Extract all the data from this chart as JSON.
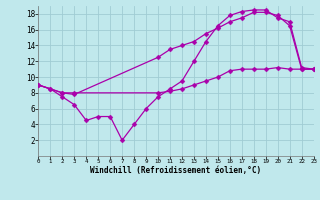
{
  "background_color": "#c0e8ec",
  "grid_color": "#a0ccd4",
  "line_color": "#aa00aa",
  "xlim": [
    0,
    23
  ],
  "ylim": [
    0,
    19
  ],
  "xtick_vals": [
    0,
    1,
    2,
    3,
    4,
    5,
    6,
    7,
    8,
    9,
    10,
    11,
    12,
    13,
    14,
    15,
    16,
    17,
    18,
    19,
    20,
    21,
    22,
    23
  ],
  "ytick_vals": [
    2,
    4,
    6,
    8,
    10,
    12,
    14,
    16,
    18
  ],
  "xlabel": "Windchill (Refroidissement éolien,°C)",
  "line1_x": [
    0,
    1,
    2,
    3,
    10,
    11,
    12,
    13,
    14,
    15,
    16,
    17,
    18,
    19,
    20,
    21,
    22,
    23
  ],
  "line1_y": [
    9.0,
    8.5,
    8.0,
    8.0,
    8.0,
    8.2,
    8.5,
    9.0,
    9.5,
    10.0,
    10.8,
    11.0,
    11.0,
    11.0,
    11.2,
    11.0,
    11.0,
    11.0
  ],
  "line2_x": [
    0,
    1,
    2,
    3,
    4,
    5,
    6,
    7,
    8,
    9,
    10,
    11,
    12,
    13,
    14,
    15,
    16,
    17,
    18,
    19,
    20,
    21,
    22,
    23
  ],
  "line2_y": [
    9.0,
    8.5,
    7.5,
    6.5,
    4.5,
    5.0,
    5.0,
    2.0,
    4.0,
    6.0,
    7.5,
    8.5,
    9.5,
    12.0,
    14.5,
    16.5,
    17.8,
    18.3,
    18.5,
    18.5,
    17.5,
    17.0,
    11.2,
    11.0
  ],
  "line3_x": [
    0,
    2,
    3,
    10,
    11,
    12,
    13,
    14,
    15,
    16,
    17,
    18,
    19,
    20,
    21,
    22,
    23
  ],
  "line3_y": [
    9.0,
    8.0,
    7.8,
    12.5,
    13.5,
    14.0,
    14.5,
    15.5,
    16.2,
    17.0,
    17.5,
    18.2,
    18.2,
    17.8,
    16.5,
    11.0,
    11.0
  ]
}
